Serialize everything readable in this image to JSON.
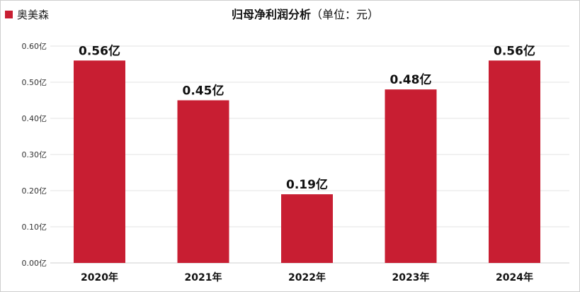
{
  "chart_data": {
    "type": "bar",
    "title": "归母净利润分析",
    "title_suffix": "（单位：元）",
    "legend": {
      "label": "奥美森",
      "placement": "top-left"
    },
    "categories": [
      "2020年",
      "2021年",
      "2022年",
      "2023年",
      "2024年"
    ],
    "series": [
      {
        "name": "奥美森",
        "values": [
          0.56,
          0.45,
          0.19,
          0.48,
          0.56
        ],
        "labels": [
          "0.56亿",
          "0.45亿",
          "0.19亿",
          "0.48亿",
          "0.56亿"
        ]
      }
    ],
    "ylim": [
      0,
      0.6
    ],
    "yticks": [
      0.0,
      0.1,
      0.2,
      0.3,
      0.4,
      0.5,
      0.6
    ],
    "ytick_labels": [
      "0.00亿",
      "0.10亿",
      "0.20亿",
      "0.30亿",
      "0.40亿",
      "0.50亿",
      "0.60亿"
    ],
    "grid": true,
    "colors": {
      "bar": "#c81e32"
    }
  }
}
